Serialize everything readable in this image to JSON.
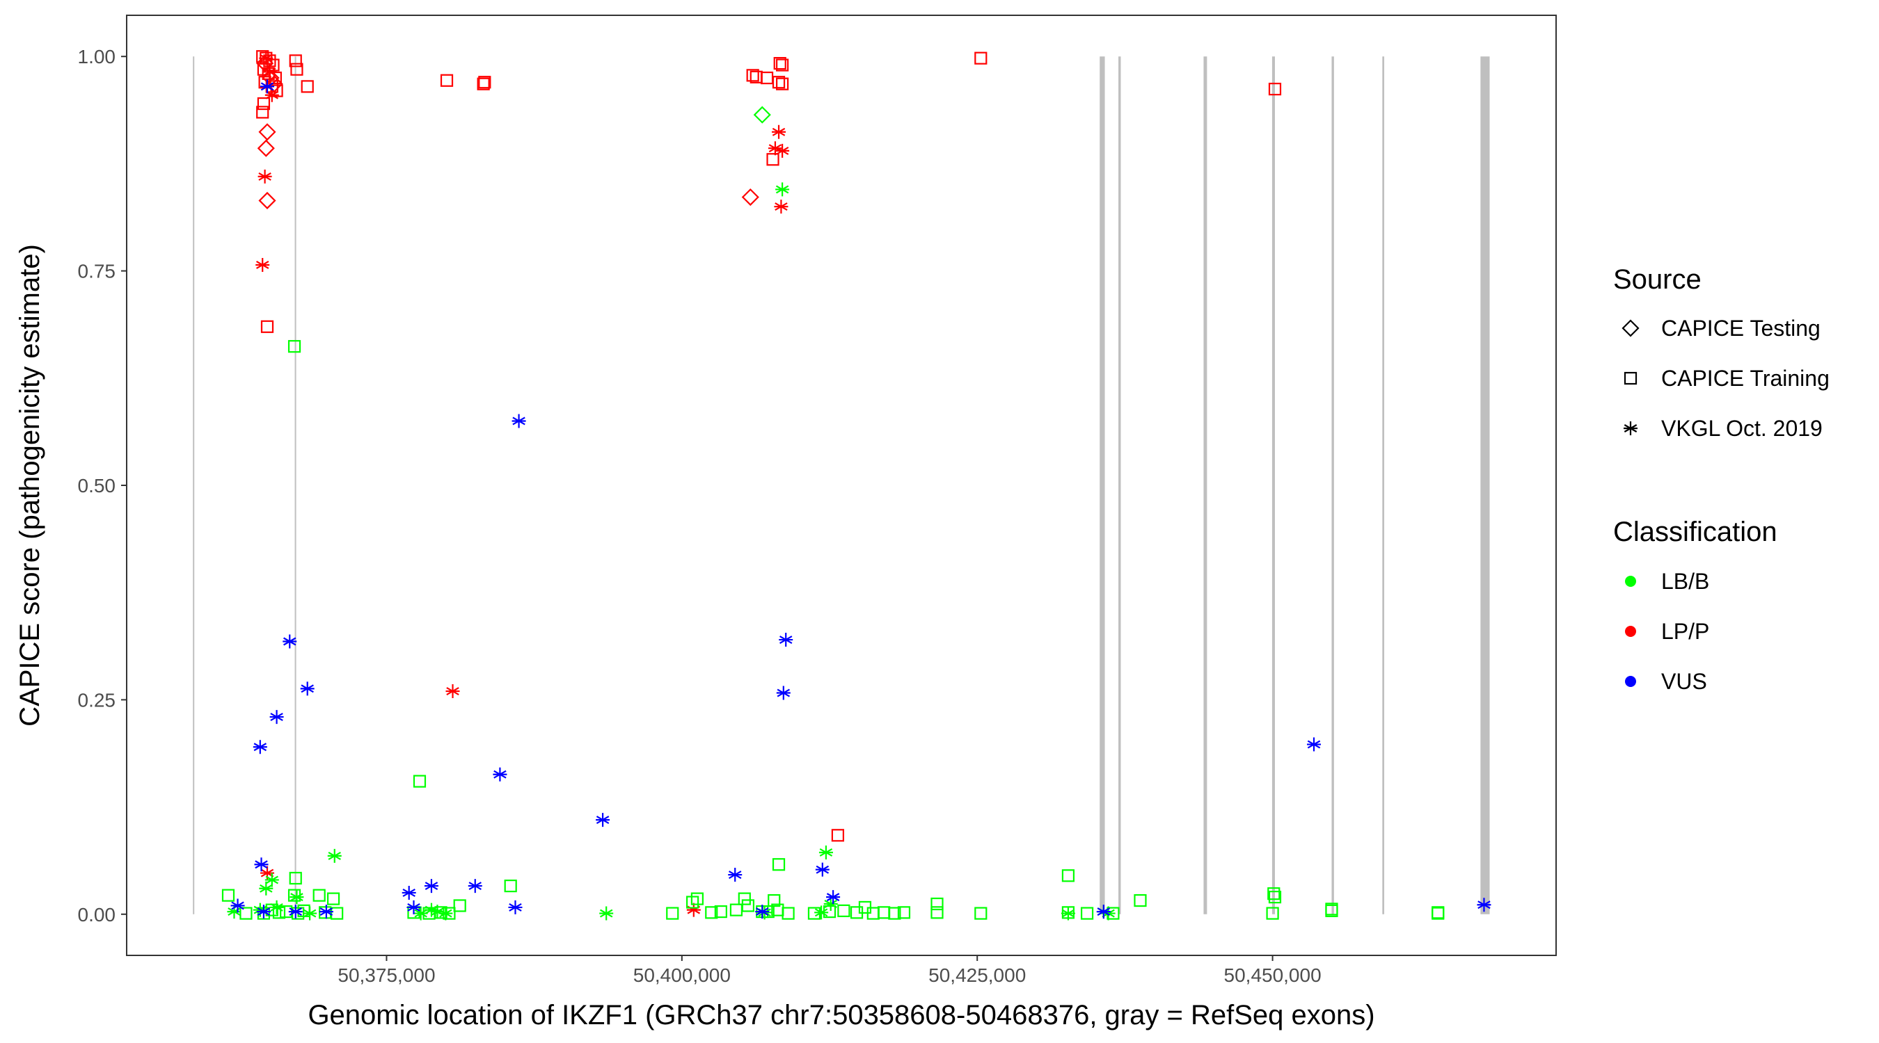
{
  "chart_data": {
    "type": "scatter",
    "title": "",
    "xlabel": "Genomic location of IKZF1 (GRCh37 chr7:50358608-50468376, gray = RefSeq exons)",
    "ylabel": "CAPICE score (pathogenicity estimate)",
    "xlim": [
      50353000,
      50474000
    ],
    "ylim": [
      -0.048,
      1.048
    ],
    "x_ticks": [
      50375000,
      50400000,
      50425000,
      50450000
    ],
    "x_tick_labels": [
      "50,375,000",
      "50,400,000",
      "50,425,000",
      "50,450,000"
    ],
    "y_ticks": [
      0,
      0.25,
      0.5,
      0.75,
      1.0
    ],
    "y_tick_labels": [
      "0.00",
      "0.25",
      "0.50",
      "0.75",
      "1.00"
    ],
    "grid": false,
    "exons": [
      {
        "start": 50358608,
        "end": 50358700
      },
      {
        "start": 50367230,
        "end": 50367330
      },
      {
        "start": 50435370,
        "end": 50435800
      },
      {
        "start": 50436950,
        "end": 50437150
      },
      {
        "start": 50444160,
        "end": 50444450
      },
      {
        "start": 50449960,
        "end": 50450200
      },
      {
        "start": 50455000,
        "end": 50455200
      },
      {
        "start": 50459290,
        "end": 50459450
      },
      {
        "start": 50467600,
        "end": 50468376
      }
    ],
    "legend": {
      "source_title": "Source",
      "source_entries": [
        {
          "label": "CAPICE Testing",
          "shape": "diamond"
        },
        {
          "label": "CAPICE Training",
          "shape": "square"
        },
        {
          "label": "VKGL Oct. 2019",
          "shape": "star"
        }
      ],
      "class_title": "Classification",
      "class_entries": [
        {
          "label": "LB/B",
          "color": "#00ff00"
        },
        {
          "label": "LP/P",
          "color": "#ff0000"
        },
        {
          "label": "VUS",
          "color": "#0000ff"
        }
      ],
      "placement": "right"
    },
    "colors": {
      "LB/B": "#00ff00",
      "LP/P": "#ff0000",
      "VUS": "#0000ff",
      "exon": "#bfbfbf"
    },
    "series": [
      {
        "source": "CAPICE Training",
        "classification": "LP/P",
        "points": [
          [
            50364500,
            1.0
          ],
          [
            50364800,
            0.998
          ],
          [
            50365100,
            0.995
          ],
          [
            50365400,
            0.99
          ],
          [
            50364600,
            0.985
          ],
          [
            50365000,
            0.98
          ],
          [
            50365600,
            0.975
          ],
          [
            50364700,
            0.97
          ],
          [
            50365300,
            0.965
          ],
          [
            50365700,
            0.96
          ],
          [
            50364600,
            0.945
          ],
          [
            50364500,
            0.935
          ],
          [
            50364900,
            0.685
          ],
          [
            50367300,
            0.995
          ],
          [
            50367400,
            0.985
          ],
          [
            50368300,
            0.965
          ],
          [
            50380100,
            0.972
          ],
          [
            50383300,
            0.97
          ],
          [
            50383200,
            0.968
          ],
          [
            50406000,
            0.978
          ],
          [
            50406300,
            0.976
          ],
          [
            50407200,
            0.975
          ],
          [
            50408300,
            0.992
          ],
          [
            50408500,
            0.99
          ],
          [
            50408200,
            0.97
          ],
          [
            50408500,
            0.968
          ],
          [
            50407700,
            0.88
          ],
          [
            50413200,
            0.092
          ],
          [
            50425300,
            0.998
          ],
          [
            50450200,
            0.962
          ]
        ]
      },
      {
        "source": "CAPICE Testing",
        "classification": "LP/P",
        "points": [
          [
            50364700,
            0.992
          ],
          [
            50365200,
            0.975
          ],
          [
            50365500,
            0.968
          ],
          [
            50364900,
            0.912
          ],
          [
            50364800,
            0.893
          ],
          [
            50364900,
            0.832
          ],
          [
            50405800,
            0.836
          ]
        ]
      },
      {
        "source": "VKGL Oct. 2019",
        "classification": "LP/P",
        "points": [
          [
            50364800,
            0.998
          ],
          [
            50365100,
            0.982
          ],
          [
            50365300,
            0.955
          ],
          [
            50364700,
            0.86
          ],
          [
            50364500,
            0.757
          ],
          [
            50364900,
            0.048
          ],
          [
            50380600,
            0.26
          ],
          [
            50401000,
            0.005
          ],
          [
            50408200,
            0.912
          ],
          [
            50407900,
            0.893
          ],
          [
            50408500,
            0.89
          ],
          [
            50408400,
            0.825
          ]
        ]
      },
      {
        "source": "CAPICE Testing",
        "classification": "LB/B",
        "points": [
          [
            50406800,
            0.932
          ]
        ]
      },
      {
        "source": "CAPICE Training",
        "classification": "LB/B",
        "points": [
          [
            50361600,
            0.022
          ],
          [
            50363100,
            0.001
          ],
          [
            50364600,
            0.001
          ],
          [
            50365300,
            0.005
          ],
          [
            50365900,
            0.002
          ],
          [
            50366500,
            0.003
          ],
          [
            50367300,
            0.042
          ],
          [
            50367200,
            0.022
          ],
          [
            50367500,
            0.001
          ],
          [
            50368000,
            0.004
          ],
          [
            50369300,
            0.022
          ],
          [
            50369800,
            0.002
          ],
          [
            50370500,
            0.018
          ],
          [
            50370800,
            0.001
          ],
          [
            50367200,
            0.662
          ],
          [
            50377300,
            0.002
          ],
          [
            50377800,
            0.155
          ],
          [
            50378600,
            0.001
          ],
          [
            50379600,
            0.002
          ],
          [
            50380300,
            0.001
          ],
          [
            50381200,
            0.01
          ],
          [
            50385500,
            0.033
          ],
          [
            50399200,
            0.001
          ],
          [
            50400900,
            0.014
          ],
          [
            50401300,
            0.018
          ],
          [
            50402500,
            0.002
          ],
          [
            50403300,
            0.003
          ],
          [
            50404600,
            0.005
          ],
          [
            50405300,
            0.018
          ],
          [
            50405600,
            0.01
          ],
          [
            50406800,
            0.003
          ],
          [
            50407300,
            0.003
          ],
          [
            50407800,
            0.016
          ],
          [
            50408100,
            0.005
          ],
          [
            50408200,
            0.058
          ],
          [
            50409000,
            0.001
          ],
          [
            50411200,
            0.001
          ],
          [
            50412500,
            0.003
          ],
          [
            50413700,
            0.004
          ],
          [
            50414800,
            0.002
          ],
          [
            50415500,
            0.008
          ],
          [
            50416200,
            0.001
          ],
          [
            50417100,
            0.002
          ],
          [
            50418000,
            0.001
          ],
          [
            50418800,
            0.002
          ],
          [
            50421600,
            0.012
          ],
          [
            50421600,
            0.002
          ],
          [
            50425300,
            0.001
          ],
          [
            50432700,
            0.045
          ],
          [
            50432700,
            0.002
          ],
          [
            50434300,
            0.001
          ],
          [
            50436500,
            0.001
          ],
          [
            50438800,
            0.016
          ],
          [
            50450100,
            0.024
          ],
          [
            50450200,
            0.02
          ],
          [
            50450000,
            0.001
          ],
          [
            50455000,
            0.006
          ],
          [
            50455000,
            0.004
          ],
          [
            50464000,
            0.001
          ],
          [
            50464000,
            0.002
          ]
        ]
      },
      {
        "source": "VKGL Oct. 2019",
        "classification": "LB/B",
        "points": [
          [
            50362100,
            0.003
          ],
          [
            50364300,
            0.005
          ],
          [
            50364800,
            0.03
          ],
          [
            50365300,
            0.04
          ],
          [
            50365700,
            0.008
          ],
          [
            50367400,
            0.02
          ],
          [
            50368500,
            0.001
          ],
          [
            50370600,
            0.068
          ],
          [
            50377900,
            0.001
          ],
          [
            50378800,
            0.005
          ],
          [
            50379300,
            0.003
          ],
          [
            50380000,
            0.001
          ],
          [
            50393600,
            0.001
          ],
          [
            50407000,
            0.002
          ],
          [
            50408500,
            0.845
          ],
          [
            50411800,
            0.002
          ],
          [
            50412200,
            0.072
          ],
          [
            50412600,
            0.012
          ],
          [
            50432700,
            0.001
          ],
          [
            50435700,
            0.003
          ],
          [
            50436100,
            0.001
          ]
        ]
      },
      {
        "source": "VKGL Oct. 2019",
        "classification": "VUS",
        "points": [
          [
            50362400,
            0.01
          ],
          [
            50364400,
            0.058
          ],
          [
            50364300,
            0.195
          ],
          [
            50364600,
            0.003
          ],
          [
            50364900,
            0.965
          ],
          [
            50365700,
            0.23
          ],
          [
            50366800,
            0.318
          ],
          [
            50367300,
            0.003
          ],
          [
            50368300,
            0.263
          ],
          [
            50369900,
            0.003
          ],
          [
            50376900,
            0.025
          ],
          [
            50377300,
            0.008
          ],
          [
            50378800,
            0.033
          ],
          [
            50382500,
            0.033
          ],
          [
            50384600,
            0.163
          ],
          [
            50385900,
            0.008
          ],
          [
            50386200,
            0.575
          ],
          [
            50393300,
            0.11
          ],
          [
            50404500,
            0.046
          ],
          [
            50406800,
            0.003
          ],
          [
            50408600,
            0.258
          ],
          [
            50408800,
            0.32
          ],
          [
            50411900,
            0.052
          ],
          [
            50412800,
            0.02
          ],
          [
            50435700,
            0.003
          ],
          [
            50453500,
            0.198
          ],
          [
            50467900,
            0.011
          ]
        ]
      }
    ]
  }
}
